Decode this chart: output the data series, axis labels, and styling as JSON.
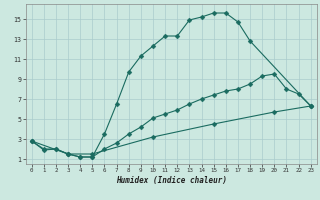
{
  "xlabel": "Humidex (Indice chaleur)",
  "bg_color": "#cce8e0",
  "grid_color": "#aacccc",
  "line_color": "#1a6b60",
  "xlim": [
    -0.5,
    23.5
  ],
  "ylim": [
    0.5,
    16.5
  ],
  "xticks": [
    0,
    1,
    2,
    3,
    4,
    5,
    6,
    7,
    8,
    9,
    10,
    11,
    12,
    13,
    14,
    15,
    16,
    17,
    18,
    19,
    20,
    21,
    22,
    23
  ],
  "yticks": [
    1,
    3,
    5,
    7,
    9,
    11,
    13,
    15
  ],
  "curve1_x": [
    0,
    1,
    2,
    3,
    4,
    5,
    6,
    7,
    8,
    9,
    10,
    11,
    12,
    13,
    14,
    15,
    16,
    17,
    18,
    23
  ],
  "curve1_y": [
    2.8,
    2.0,
    2.0,
    1.5,
    1.2,
    1.2,
    3.5,
    6.5,
    9.7,
    11.3,
    12.3,
    13.3,
    13.3,
    14.9,
    15.2,
    15.6,
    15.6,
    14.7,
    12.8,
    6.3
  ],
  "curve2_x": [
    0,
    1,
    2,
    3,
    4,
    5,
    6,
    7,
    8,
    9,
    10,
    11,
    12,
    13,
    14,
    15,
    16,
    17,
    18,
    19,
    20,
    21,
    22,
    23
  ],
  "curve2_y": [
    2.8,
    1.9,
    2.0,
    1.5,
    1.2,
    1.2,
    2.0,
    2.6,
    3.5,
    4.2,
    5.1,
    5.5,
    5.9,
    6.5,
    7.0,
    7.4,
    7.8,
    8.0,
    8.5,
    9.3,
    9.5,
    8.0,
    7.5,
    6.3
  ],
  "curve3_x": [
    0,
    3,
    5,
    10,
    15,
    20,
    23
  ],
  "curve3_y": [
    2.8,
    1.5,
    1.5,
    3.2,
    4.5,
    5.7,
    6.3
  ],
  "markersize": 2.5
}
